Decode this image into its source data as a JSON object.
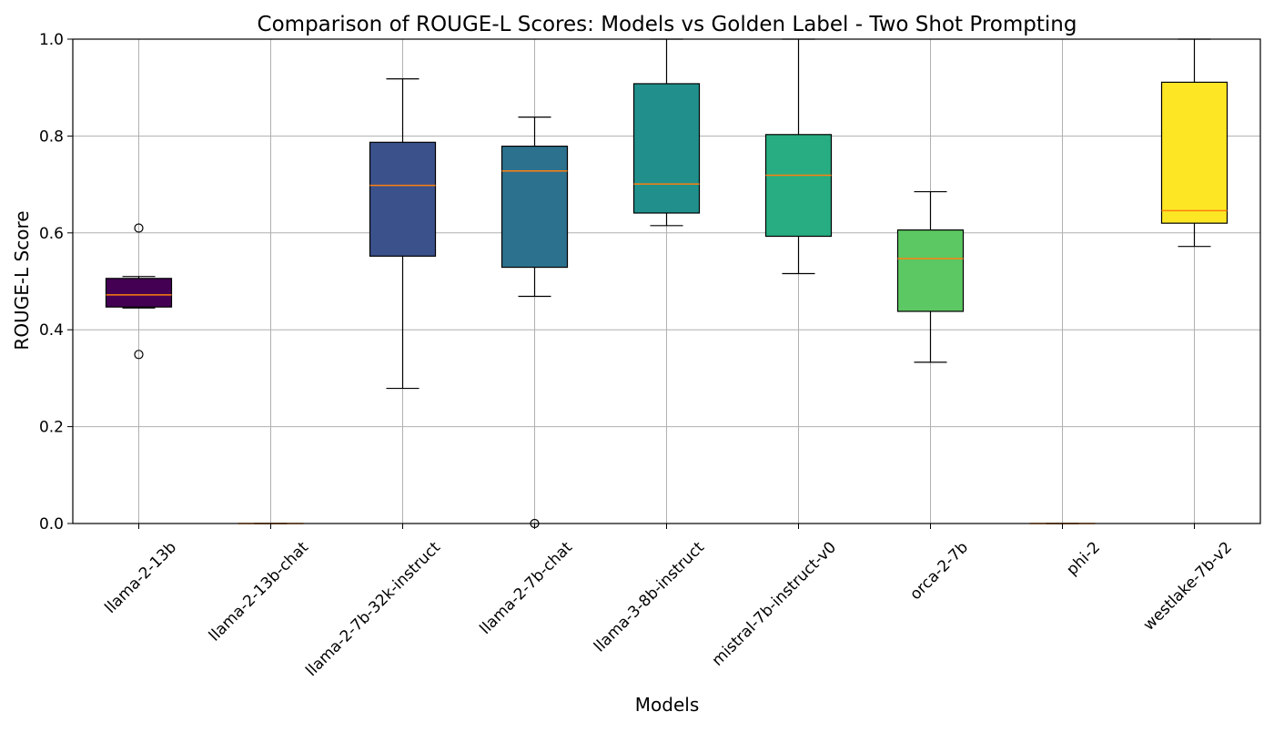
{
  "chart_data": {
    "type": "box",
    "title": "Comparison of ROUGE-L Scores: Models vs Golden Label - Two Shot Prompting",
    "xlabel": "Models",
    "ylabel": "ROUGE-L Score",
    "ylim": [
      0.0,
      1.0
    ],
    "yticks": [
      "0.0",
      "0.2",
      "0.4",
      "0.6",
      "0.8",
      "1.0"
    ],
    "grid": true,
    "median_color": "#ff7f0e",
    "boxes": [
      {
        "category": "llama-2-13b",
        "whisker_low": 0.445,
        "q1": 0.447,
        "median": 0.472,
        "q3": 0.506,
        "whisker_high": 0.51,
        "outliers": [
          0.61,
          0.349
        ],
        "color": "#440154"
      },
      {
        "category": "llama-2-13b-chat",
        "whisker_low": 0.0,
        "q1": 0.0,
        "median": 0.0,
        "q3": 0.0,
        "whisker_high": 0.0,
        "outliers": [],
        "color": "#472c7a"
      },
      {
        "category": "llama-2-7b-32k-instruct",
        "whisker_low": 0.279,
        "q1": 0.552,
        "median": 0.698,
        "q3": 0.787,
        "whisker_high": 0.918,
        "outliers": [],
        "color": "#3b518b"
      },
      {
        "category": "llama-2-7b-chat",
        "whisker_low": 0.469,
        "q1": 0.529,
        "median": 0.728,
        "q3": 0.779,
        "whisker_high": 0.839,
        "outliers": [
          0.0
        ],
        "color": "#2c718e"
      },
      {
        "category": "llama-3-8b-instruct",
        "whisker_low": 0.615,
        "q1": 0.641,
        "median": 0.701,
        "q3": 0.908,
        "whisker_high": 1.0,
        "outliers": [],
        "color": "#21908d"
      },
      {
        "category": "mistral-7b-instruct-v0",
        "whisker_low": 0.516,
        "q1": 0.593,
        "median": 0.719,
        "q3": 0.803,
        "whisker_high": 1.0,
        "outliers": [],
        "color": "#27ad81"
      },
      {
        "category": "orca-2-7b",
        "whisker_low": 0.333,
        "q1": 0.438,
        "median": 0.547,
        "q3": 0.606,
        "whisker_high": 0.685,
        "outliers": [],
        "color": "#5cc863"
      },
      {
        "category": "phi-2",
        "whisker_low": 0.0,
        "q1": 0.0,
        "median": 0.0,
        "q3": 0.0,
        "whisker_high": 0.0,
        "outliers": [],
        "color": "#aadc32"
      },
      {
        "category": "westlake-7b-v2",
        "whisker_low": 0.572,
        "q1": 0.62,
        "median": 0.646,
        "q3": 0.911,
        "whisker_high": 1.0,
        "outliers": [],
        "color": "#fde725"
      }
    ]
  }
}
